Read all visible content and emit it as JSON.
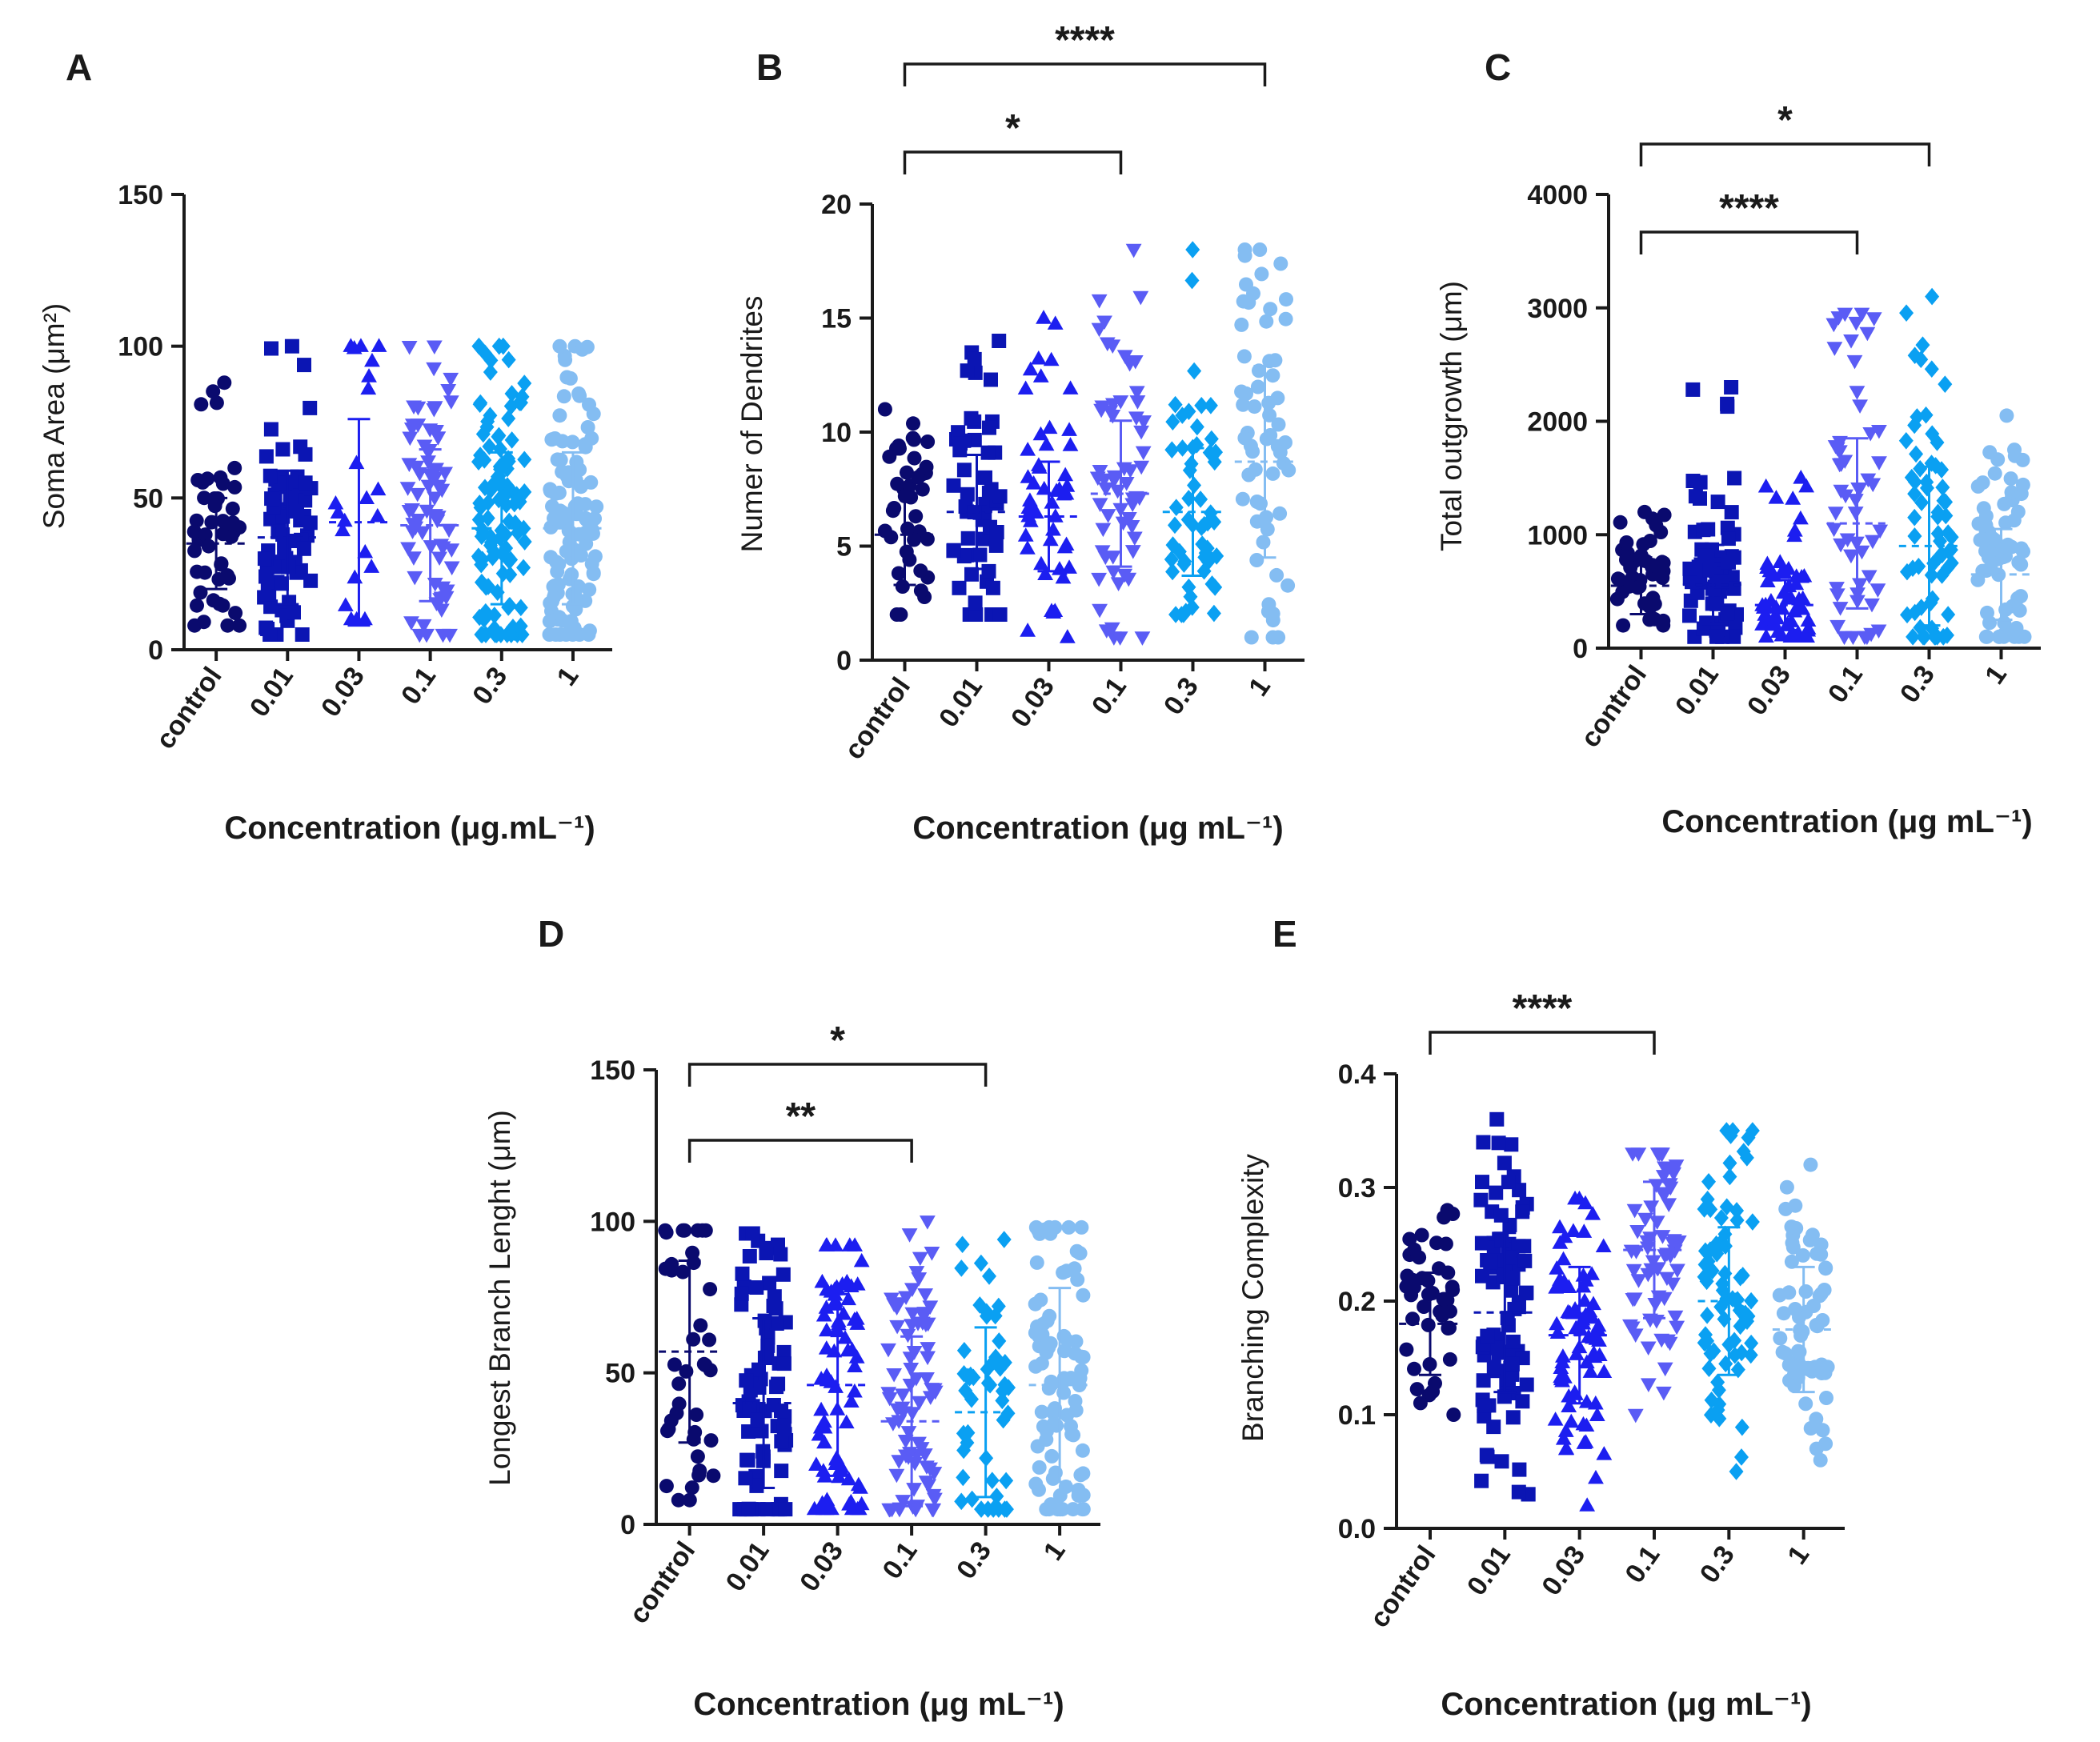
{
  "figure": {
    "background": "#ffffff"
  },
  "series_colors": [
    "#0a0a6e",
    "#0b15b3",
    "#1c1ef0",
    "#5a5cf5",
    "#0aa0f2",
    "#84bdf2"
  ],
  "marker_shapes": [
    "circle",
    "square",
    "triangle-up",
    "triangle-down",
    "diamond",
    "circle"
  ],
  "categories": [
    "control",
    "0.01",
    "0.03",
    "0.1",
    "0.3",
    "1"
  ],
  "chart_data": [
    {
      "panel": "A",
      "type": "scatter",
      "title": "",
      "ylabel": "Soma Area (μm²)",
      "xlabel": "Concentration (μg.mL⁻¹)",
      "categories": [
        "control",
        "0.01",
        "0.03",
        "0.1",
        "0.3",
        "1"
      ],
      "ylim": [
        0,
        150
      ],
      "yticks": [
        0,
        50,
        100,
        150
      ],
      "ytick_labels": [
        "0",
        "50",
        "100",
        "150"
      ],
      "means": [
        35,
        37,
        42,
        41,
        40,
        40
      ],
      "sd": [
        15,
        22,
        34,
        25,
        25,
        25
      ],
      "ranges": [
        [
          8,
          88
        ],
        [
          5,
          100
        ],
        [
          10,
          100
        ],
        [
          5,
          100
        ],
        [
          5,
          100
        ],
        [
          5,
          100
        ]
      ],
      "n": [
        48,
        75,
        22,
        70,
        110,
        110
      ],
      "significance": []
    },
    {
      "panel": "B",
      "type": "scatter",
      "title": "",
      "ylabel": "Numer of Dendrites",
      "xlabel": "Concentration (μg mL⁻¹)",
      "categories": [
        "control",
        "0.01",
        "0.03",
        "0.1",
        "0.3",
        "1"
      ],
      "ylim": [
        0,
        20
      ],
      "yticks": [
        0,
        5,
        10,
        15,
        20
      ],
      "ytick_labels": [
        "0",
        "5",
        "10",
        "15",
        "20"
      ],
      "means": [
        5.5,
        6.5,
        6.3,
        7.3,
        6.5,
        8.7
      ],
      "sd": [
        2.2,
        2.5,
        2.4,
        3.2,
        2.8,
        4.2
      ],
      "ranges": [
        [
          2,
          11
        ],
        [
          2,
          14
        ],
        [
          1,
          15
        ],
        [
          1,
          18
        ],
        [
          2,
          18
        ],
        [
          1,
          18
        ]
      ],
      "n": [
        40,
        55,
        50,
        60,
        55,
        60
      ],
      "significance": [
        {
          "from": 0,
          "to": 3,
          "label": "*",
          "level": 1
        },
        {
          "from": 0,
          "to": 5,
          "label": "****",
          "level": 2
        }
      ]
    },
    {
      "panel": "C",
      "type": "scatter",
      "title": "",
      "ylabel": "Total outgrowth (μm)",
      "xlabel": "Concentration (μg mL⁻¹)",
      "categories": [
        "control",
        "0.01",
        "0.03",
        "0.1",
        "0.3",
        "1"
      ],
      "ylim": [
        0,
        4000
      ],
      "yticks": [
        0,
        1000,
        2000,
        3000,
        4000
      ],
      "ytick_labels": [
        "0",
        "1000",
        "2000",
        "3000",
        "4000"
      ],
      "means": [
        550,
        560,
        380,
        1100,
        900,
        650
      ],
      "sd": [
        250,
        350,
        220,
        750,
        700,
        400
      ],
      "ranges": [
        [
          200,
          1200
        ],
        [
          100,
          2300
        ],
        [
          100,
          1500
        ],
        [
          100,
          2950
        ],
        [
          100,
          3100
        ],
        [
          100,
          2050
        ]
      ],
      "n": [
        45,
        70,
        60,
        55,
        65,
        70
      ],
      "significance": [
        {
          "from": 0,
          "to": 3,
          "label": "****",
          "level": 1
        },
        {
          "from": 0,
          "to": 4,
          "label": "*",
          "level": 2
        }
      ]
    },
    {
      "panel": "D",
      "type": "scatter",
      "title": "",
      "ylabel": "Longest Branch Lenght (μm)",
      "xlabel": "Concentration (μg mL⁻¹)",
      "categories": [
        "control",
        "0.01",
        "0.03",
        "0.1",
        "0.3",
        "1"
      ],
      "ylim": [
        0,
        150
      ],
      "yticks": [
        0,
        50,
        100,
        150
      ],
      "ytick_labels": [
        "0",
        "50",
        "100",
        "150"
      ],
      "means": [
        57,
        40,
        46,
        34,
        37,
        46
      ],
      "sd": [
        30,
        28,
        30,
        28,
        28,
        32
      ],
      "ranges": [
        [
          8,
          97
        ],
        [
          5,
          96
        ],
        [
          5,
          92
        ],
        [
          5,
          100
        ],
        [
          5,
          94
        ],
        [
          5,
          98
        ]
      ],
      "n": [
        40,
        75,
        75,
        80,
        50,
        90
      ],
      "significance": [
        {
          "from": 0,
          "to": 3,
          "label": "**",
          "level": 1
        },
        {
          "from": 0,
          "to": 4,
          "label": "*",
          "level": 2
        }
      ]
    },
    {
      "panel": "E",
      "type": "scatter",
      "title": "",
      "ylabel": "Branching Complexity",
      "xlabel": "Concentration (μg mL⁻¹)",
      "categories": [
        "control",
        "0.01",
        "0.03",
        "0.1",
        "0.3",
        "1"
      ],
      "ylim": [
        0,
        0.4
      ],
      "yticks": [
        0,
        0.1,
        0.2,
        0.3,
        0.4
      ],
      "ytick_labels": [
        "0.0",
        "0.1",
        "0.2",
        "0.3",
        "0.4"
      ],
      "means": [
        0.18,
        0.19,
        0.17,
        0.245,
        0.2,
        0.175
      ],
      "sd": [
        0.045,
        0.07,
        0.06,
        0.06,
        0.065,
        0.055
      ],
      "ranges": [
        [
          0.1,
          0.28
        ],
        [
          0.03,
          0.36
        ],
        [
          0.02,
          0.29
        ],
        [
          0.1,
          0.33
        ],
        [
          0.05,
          0.35
        ],
        [
          0.06,
          0.32
        ]
      ],
      "n": [
        45,
        90,
        80,
        65,
        75,
        65
      ],
      "significance": [
        {
          "from": 0,
          "to": 3,
          "label": "****",
          "level": 1
        }
      ]
    }
  ]
}
